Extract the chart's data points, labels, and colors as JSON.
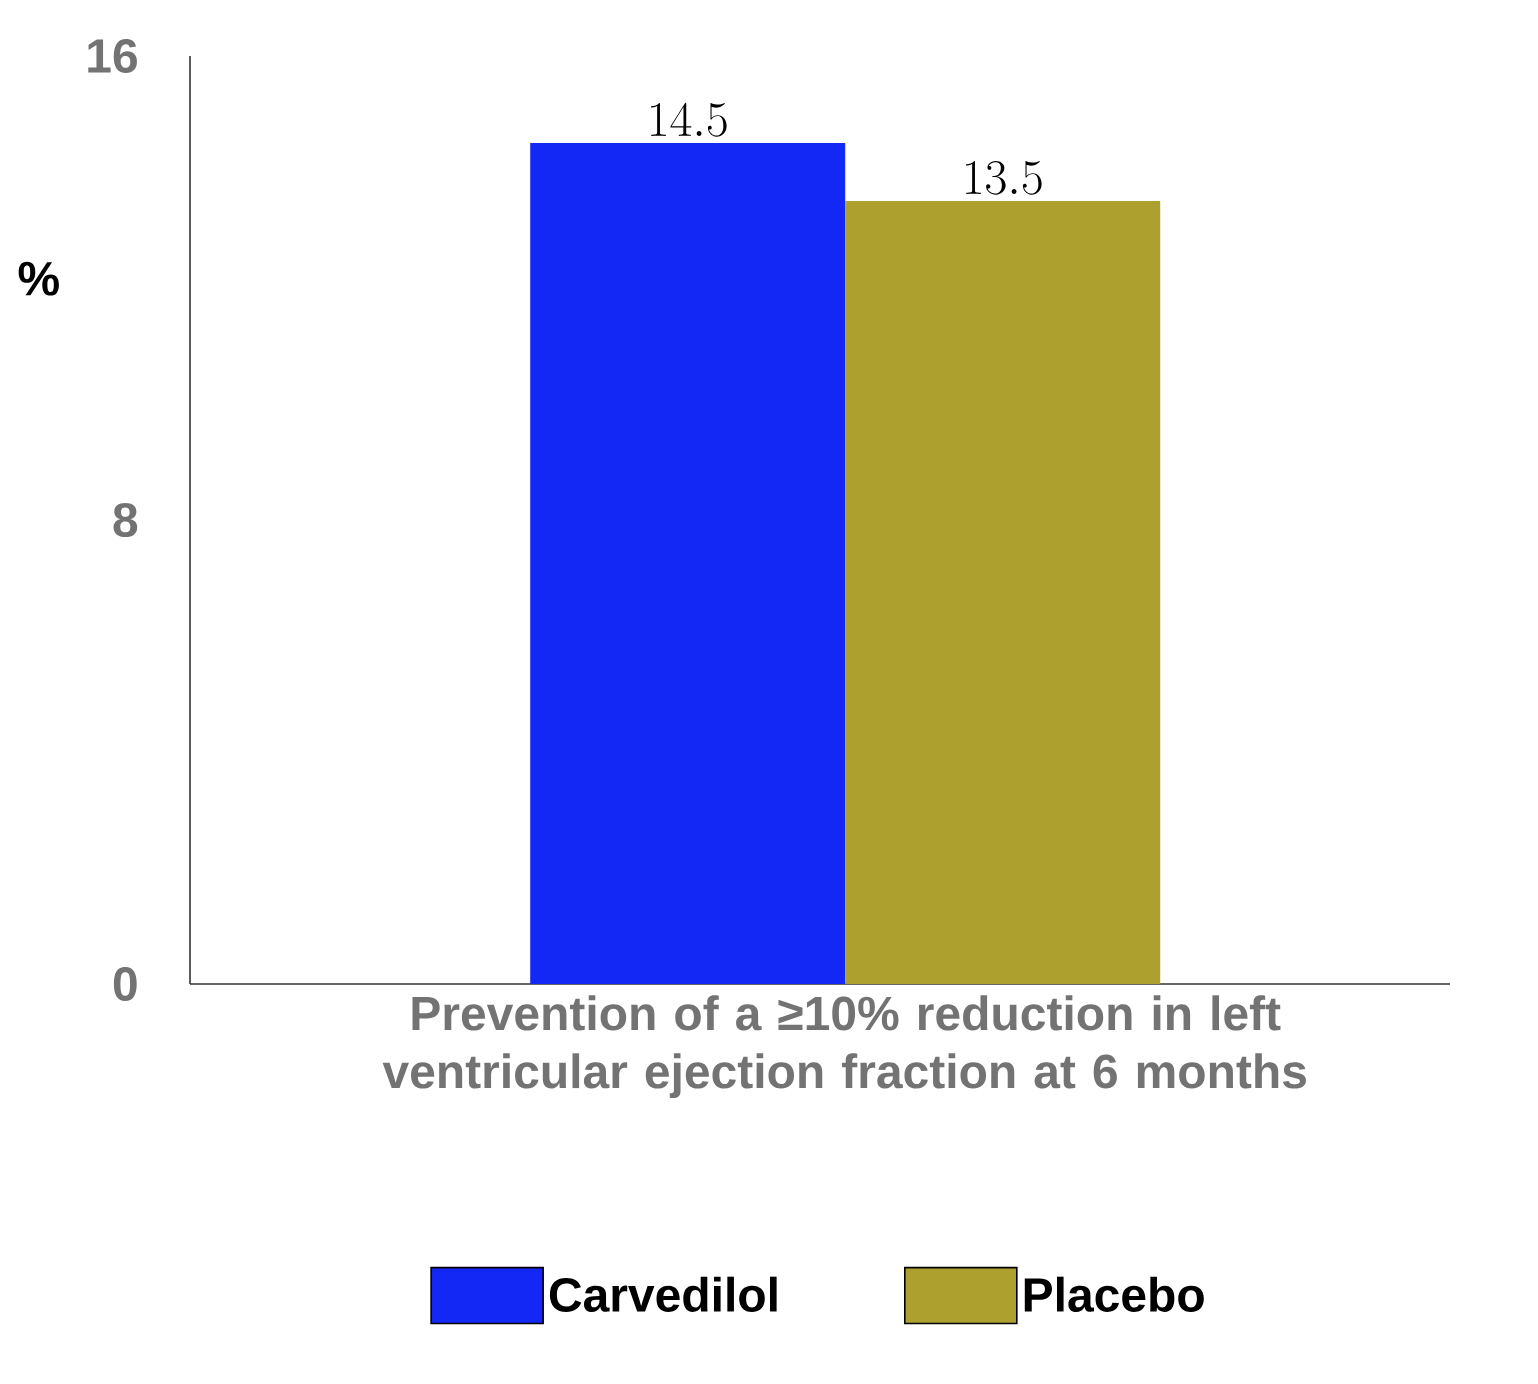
{
  "chart_data": {
    "type": "bar",
    "ylabel": "%",
    "categories": [
      "Prevention of a ≥10% reduction in left ventricular ejection fraction at 6 months"
    ],
    "series": [
      {
        "name": "Carvedilol",
        "color": "#1428f5",
        "values": [
          14.5
        ]
      },
      {
        "name": "Placebo",
        "color": "#aea02e",
        "values": [
          13.5
        ]
      }
    ],
    "ylim": [
      0,
      16
    ],
    "yticks": [
      0,
      8,
      16
    ],
    "data_labels": true,
    "legend": "bottom"
  }
}
